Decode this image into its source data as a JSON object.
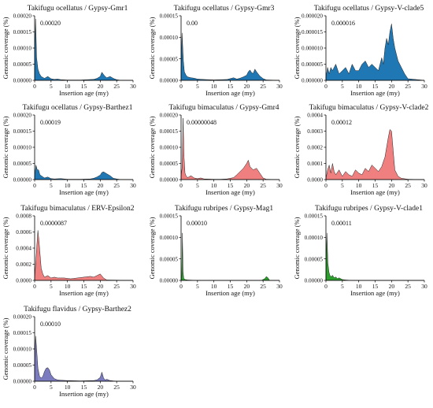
{
  "figure": {
    "background": "#ffffff"
  },
  "panels": [
    {
      "title": "Takifugu ocellatus / Gypsy-Gmr1",
      "annotation": "0.00020",
      "ylabel": "Genomic coverage (%)",
      "xlabel": "Insertion age (my)",
      "color": "#1f77b4",
      "chart_data": {
        "type": "area",
        "ylim": [
          0,
          0.0002
        ],
        "xlim": [
          0,
          30
        ],
        "yticks": [
          "0.00000",
          "0.00005",
          "0.00010",
          "0.00015",
          "0.00020"
        ],
        "xticks": [
          "0",
          "5",
          "10",
          "15",
          "20",
          "25",
          "30"
        ],
        "x": [
          0,
          0.3,
          0.6,
          1,
          1.5,
          2,
          3,
          4,
          5,
          6,
          7,
          8,
          10,
          12,
          14,
          16,
          18,
          19,
          20,
          20.5,
          21,
          21.5,
          22,
          23,
          24,
          25,
          26,
          30
        ],
        "values": [
          3e-05,
          0.00019,
          7e-05,
          3.5e-05,
          2e-05,
          1.2e-05,
          6e-06,
          1.2e-05,
          5e-06,
          3e-06,
          4e-06,
          2e-06,
          1e-06,
          1e-06,
          1e-06,
          2e-06,
          3e-06,
          6e-06,
          1.2e-05,
          2.5e-05,
          1.8e-05,
          1.2e-05,
          8e-06,
          1.2e-05,
          6e-06,
          2e-06,
          5e-07,
          0
        ]
      }
    },
    {
      "title": "Takifugu ocellatus / Gypsy-Gmr3",
      "annotation": "0.00",
      "ylabel": "Genomic coverage (%)",
      "xlabel": "Insertion age (my)",
      "color": "#1f77b4",
      "chart_data": {
        "type": "area",
        "ylim": [
          0,
          0.00015
        ],
        "xlim": [
          0,
          30
        ],
        "yticks": [
          "0.00000",
          "0.00005",
          "0.00010",
          "0.00015"
        ],
        "xticks": [
          "0",
          "5",
          "10",
          "15",
          "20",
          "25",
          "30"
        ],
        "x": [
          0,
          0.3,
          0.7,
          1,
          1.5,
          2,
          3,
          4,
          5,
          7,
          10,
          14,
          16,
          17,
          18,
          19,
          20,
          20.5,
          21,
          21.5,
          22,
          22.5,
          23,
          24,
          25,
          26,
          30
        ],
        "values": [
          2e-05,
          0.00011,
          4.5e-05,
          2e-05,
          1.2e-05,
          8e-06,
          6e-06,
          5e-06,
          3e-06,
          2e-06,
          1e-06,
          2e-06,
          6e-06,
          3e-06,
          5e-06,
          8e-06,
          1.2e-05,
          2e-05,
          2.4e-05,
          1.8e-05,
          1.6e-05,
          2.6e-05,
          2e-05,
          1e-05,
          4e-06,
          1e-06,
          0
        ]
      }
    },
    {
      "title": "Takifugu ocellatus / Gypsy-V-clade5",
      "annotation": "0.000016",
      "ylabel": "Genomic coverage (%)",
      "xlabel": "Insertion age (my)",
      "color": "#1f77b4",
      "chart_data": {
        "type": "area",
        "ylim": [
          0,
          2e-05
        ],
        "xlim": [
          0,
          30
        ],
        "yticks": [
          "0.000000",
          "0.000005",
          "0.000010",
          "0.000015",
          "0.000020"
        ],
        "xticks": [
          "0",
          "5",
          "10",
          "15",
          "20",
          "25",
          "30"
        ],
        "x": [
          0,
          0.5,
          1,
          1.5,
          2,
          3,
          4,
          5,
          6,
          7,
          8,
          9,
          10,
          11,
          12,
          13,
          14,
          15,
          16,
          17,
          17.5,
          18,
          18.5,
          19,
          19.5,
          20,
          20.5,
          21,
          21.5,
          22,
          23,
          24,
          25,
          30
        ],
        "values": [
          1e-06,
          4e-06,
          2e-06,
          4e-06,
          3e-06,
          5e-06,
          2e-06,
          3e-06,
          4e-06,
          2e-06,
          5e-06,
          3e-06,
          3e-06,
          5e-06,
          6e-06,
          4e-06,
          5e-06,
          4e-06,
          3e-06,
          7e-06,
          5e-06,
          1e-05,
          1.3e-05,
          1.1e-05,
          1.5e-05,
          1.75e-05,
          1.3e-05,
          1e-05,
          8e-06,
          6e-06,
          4e-06,
          2e-06,
          5e-07,
          0
        ]
      }
    },
    {
      "title": "Takifugu ocellatus / Gypsy-Barthez1",
      "annotation": "0.00019",
      "ylabel": "Genomic coverage (%)",
      "xlabel": "Insertion age (my)",
      "color": "#1f77b4",
      "chart_data": {
        "type": "area",
        "ylim": [
          0,
          0.0002
        ],
        "xlim": [
          0,
          30
        ],
        "yticks": [
          "0.00000",
          "0.00005",
          "0.00010",
          "0.00015",
          "0.00020"
        ],
        "xticks": [
          "0",
          "5",
          "10",
          "15",
          "20",
          "25",
          "30"
        ],
        "x": [
          0,
          0.4,
          0.8,
          1.2,
          1.6,
          2,
          3,
          4,
          5,
          6,
          8,
          10,
          14,
          17,
          18,
          19,
          20,
          20.5,
          21,
          22,
          23,
          24,
          25,
          26,
          30
        ],
        "values": [
          1e-05,
          4.5e-05,
          3e-05,
          3e-05,
          1.5e-05,
          1.2e-05,
          5e-06,
          8e-06,
          3e-06,
          2e-06,
          3e-06,
          1e-06,
          1e-06,
          2e-06,
          4e-06,
          8e-06,
          1.4e-05,
          2.2e-05,
          2.4e-05,
          1.8e-05,
          1.2e-05,
          4e-06,
          2e-06,
          5e-07,
          0
        ]
      }
    },
    {
      "title": "Takifugu bimaculatus / Gypsy-Gmr4",
      "annotation": "0.00000048",
      "ylabel": "Genomic coverage (%)",
      "xlabel": "Insertion age (my)",
      "color": "#f08080",
      "chart_data": {
        "type": "area",
        "ylim": [
          0,
          0.0002
        ],
        "xlim": [
          0,
          30
        ],
        "yticks": [
          "0.00000",
          "0.00005",
          "0.00010",
          "0.00015",
          "0.00020"
        ],
        "xticks": [
          "0",
          "5",
          "10",
          "15",
          "20",
          "25",
          "30"
        ],
        "x": [
          0,
          0.3,
          0.6,
          0.9,
          1.2,
          1.5,
          2,
          3,
          4,
          5,
          6,
          7,
          10,
          12,
          14,
          16,
          17,
          18,
          19,
          20,
          20.5,
          21,
          22,
          23,
          24,
          25,
          26,
          30
        ],
        "values": [
          1e-05,
          3.5e-05,
          0.00019,
          7e-05,
          2e-05,
          1.2e-05,
          6e-06,
          1.2e-05,
          5e-06,
          3e-06,
          5e-06,
          2e-06,
          1e-06,
          1e-06,
          2e-06,
          6e-06,
          1.5e-05,
          2.5e-05,
          3.5e-05,
          5e-05,
          6e-05,
          4e-05,
          3e-05,
          3.5e-05,
          2e-05,
          5e-06,
          1e-06,
          0
        ]
      }
    },
    {
      "title": "Takifugu bimaculatus / Gypsy-V-clade2",
      "annotation": "0.00012",
      "ylabel": "Genomic coverage (%)",
      "xlabel": "Insertion age (my)",
      "color": "#f08080",
      "chart_data": {
        "type": "area",
        "ylim": [
          0,
          0.0004
        ],
        "xlim": [
          0,
          30
        ],
        "yticks": [
          "0.0000",
          "0.0001",
          "0.0002",
          "0.0003",
          "0.0004"
        ],
        "xticks": [
          "0",
          "5",
          "10",
          "15",
          "20",
          "25",
          "30"
        ],
        "x": [
          0,
          0.5,
          1,
          1.5,
          2,
          2.5,
          3,
          4,
          5,
          6,
          7,
          8,
          9,
          10,
          11,
          12,
          13,
          14,
          15,
          16,
          17,
          18,
          18.5,
          19,
          19.5,
          20,
          20.5,
          21,
          22,
          23,
          25,
          30
        ],
        "values": [
          5e-06,
          6e-05,
          9e-05,
          4e-05,
          0.0001,
          5e-05,
          3e-05,
          6e-05,
          2e-05,
          5e-05,
          3e-05,
          2e-05,
          6e-05,
          4e-05,
          3e-05,
          7e-05,
          5e-05,
          9e-05,
          7e-05,
          5e-05,
          8e-05,
          0.00014,
          0.0002,
          0.00026,
          0.00031,
          0.0003,
          0.00018,
          6e-05,
          2e-05,
          8e-06,
          2e-06,
          0
        ]
      }
    },
    {
      "title": "Takifugu bimaculatus / ERV-Epsilon2",
      "annotation": "0.0000087",
      "ylabel": "Genomic coverage (%)",
      "xlabel": "Insertion age (my)",
      "color": "#f08080",
      "chart_data": {
        "type": "area",
        "ylim": [
          0,
          0.0008
        ],
        "xlim": [
          0,
          30
        ],
        "yticks": [
          "0.0000",
          "0.0002",
          "0.0004",
          "0.0006",
          "0.0008"
        ],
        "xticks": [
          "0",
          "5",
          "10",
          "15",
          "20",
          "25",
          "30"
        ],
        "x": [
          0,
          0.3,
          0.7,
          1,
          1.3,
          1.7,
          2,
          2.5,
          3,
          4,
          5,
          6,
          7,
          9,
          11,
          13,
          15,
          17,
          18,
          19,
          20,
          21,
          22,
          30
        ],
        "values": [
          2e-05,
          0.0002,
          0.00045,
          0.00062,
          0.0005,
          0.0003,
          0.00015,
          8e-05,
          4e-05,
          6e-05,
          3e-05,
          4e-05,
          3e-05,
          3e-05,
          2e-05,
          3e-05,
          4e-05,
          5e-05,
          4e-05,
          6e-05,
          8e-05,
          3e-05,
          5e-06,
          0
        ]
      }
    },
    {
      "title": "Takifugu rubripes / Gypsy-Mag1",
      "annotation": "0.00010",
      "ylabel": "Genomic coverage (%)",
      "xlabel": "Insertion age (my)",
      "color": "#2ca02c",
      "chart_data": {
        "type": "area",
        "ylim": [
          0,
          0.00015
        ],
        "xlim": [
          0,
          30
        ],
        "yticks": [
          "0.00000",
          "0.00005",
          "0.00010",
          "0.00015"
        ],
        "xticks": [
          "0",
          "5",
          "10",
          "15",
          "20",
          "25",
          "30"
        ],
        "x": [
          0,
          0.2,
          0.4,
          0.6,
          0.8,
          1.2,
          2,
          5,
          10,
          20,
          24.5,
          25.5,
          26,
          26.5,
          27,
          30
        ],
        "values": [
          2e-06,
          1e-05,
          0.00011,
          2e-05,
          5e-06,
          2e-06,
          1e-06,
          0,
          0,
          0,
          0,
          4e-06,
          9e-06,
          6e-06,
          0,
          0
        ]
      }
    },
    {
      "title": "Takifugu rubripes / Gypsy-V-clade1",
      "annotation": "0.00011",
      "ylabel": "Genomic coverage (%)",
      "xlabel": "Insertion age (my)",
      "color": "#2ca02c",
      "chart_data": {
        "type": "area",
        "ylim": [
          0,
          0.00015
        ],
        "xlim": [
          0,
          30
        ],
        "yticks": [
          "0.00000",
          "0.00005",
          "0.00010",
          "0.00015"
        ],
        "xticks": [
          "0",
          "5",
          "10",
          "15",
          "20",
          "25",
          "30"
        ],
        "x": [
          0,
          0.3,
          0.6,
          0.9,
          1.2,
          1.6,
          2,
          2.5,
          3,
          3.5,
          4,
          5,
          6,
          8,
          30
        ],
        "values": [
          1e-05,
          0.00011,
          4e-05,
          2e-05,
          1.2e-05,
          8e-06,
          1.2e-05,
          6e-06,
          8e-06,
          4e-06,
          6e-06,
          2e-06,
          1e-06,
          0,
          0
        ]
      }
    },
    {
      "title": "Takifugu flavidus / Gypsy-Barthez2",
      "annotation": "0.00010",
      "ylabel": "Genomic coverage (%)",
      "xlabel": "Insertion age (my)",
      "color": "#7b7bc0",
      "chart_data": {
        "type": "area",
        "ylim": [
          0,
          0.0002
        ],
        "xlim": [
          0,
          30
        ],
        "yticks": [
          "0.00000",
          "0.00005",
          "0.00010",
          "0.00015",
          "0.00020"
        ],
        "xticks": [
          "0",
          "5",
          "10",
          "15",
          "20",
          "25",
          "30"
        ],
        "x": [
          0,
          0.3,
          0.6,
          1,
          1.5,
          2,
          2.5,
          3,
          3.5,
          4,
          4.5,
          5,
          6,
          7,
          8,
          10,
          14,
          18,
          19,
          20,
          20.5,
          21,
          21.5,
          22,
          23,
          25,
          30
        ],
        "values": [
          5e-05,
          0.00014,
          0.0001,
          4e-05,
          1.5e-05,
          1e-05,
          1.5e-05,
          3e-05,
          4e-05,
          4.2e-05,
          3.5e-05,
          2e-05,
          8e-06,
          4e-06,
          3e-06,
          2e-06,
          1e-06,
          2e-06,
          4e-06,
          1.2e-05,
          2.8e-05,
          1e-05,
          4e-06,
          6e-06,
          2e-06,
          0,
          0
        ]
      }
    }
  ]
}
